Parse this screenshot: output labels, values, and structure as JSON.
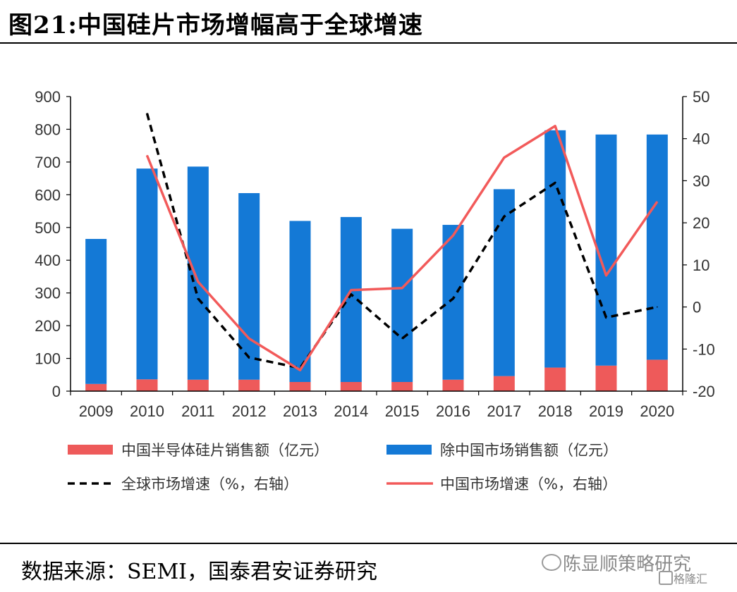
{
  "header": {
    "title": "图21:中国硅片市场增幅高于全球增速"
  },
  "footer": {
    "source": "数据来源：SEMI，国泰君安证券研究"
  },
  "watermark": {
    "main": "陈显顺策略研究",
    "sub": "格隆汇"
  },
  "colors": {
    "china_bar": "#EE5A5A",
    "rest_bar": "#1479D6",
    "global_line": "#000000",
    "china_line": "#F25A5A",
    "axis": "#000000"
  },
  "chart_data": {
    "type": "bar",
    "stacked": true,
    "categories": [
      "2009",
      "2010",
      "2011",
      "2012",
      "2013",
      "2014",
      "2015",
      "2016",
      "2017",
      "2018",
      "2019",
      "2020"
    ],
    "series": [
      {
        "name": "中国半导体硅片销售额（亿元）",
        "kind": "bar",
        "axis": "left",
        "values": [
          22,
          36,
          35,
          35,
          28,
          28,
          28,
          35,
          46,
          72,
          78,
          96
        ]
      },
      {
        "name": "除中国市场销售额（亿元）",
        "kind": "bar",
        "axis": "left",
        "values": [
          443,
          644,
          651,
          570,
          492,
          504,
          468,
          473,
          571,
          725,
          706,
          688
        ]
      },
      {
        "name": "全球市场增速（%，右轴）",
        "kind": "line",
        "dashed": true,
        "axis": "right",
        "values": [
          null,
          46,
          2,
          -12,
          -14.5,
          3,
          -7.5,
          2,
          21.5,
          29.5,
          -2.5,
          0
        ]
      },
      {
        "name": "中国市场增速（%，右轴）",
        "kind": "line",
        "dashed": false,
        "axis": "right",
        "values": [
          null,
          36,
          6,
          -7.5,
          -15,
          4,
          4.5,
          17,
          35.5,
          43,
          7.5,
          25
        ]
      }
    ],
    "y_left": {
      "min": 0,
      "max": 900,
      "ticks": [
        "0",
        "100",
        "200",
        "300",
        "400",
        "500",
        "600",
        "700",
        "800",
        "900"
      ]
    },
    "y_right": {
      "min": -20,
      "max": 50,
      "ticks": [
        "-20",
        "-10",
        "0",
        "10",
        "20",
        "30",
        "40",
        "50"
      ]
    },
    "grid": false,
    "legend_position": "bottom"
  }
}
